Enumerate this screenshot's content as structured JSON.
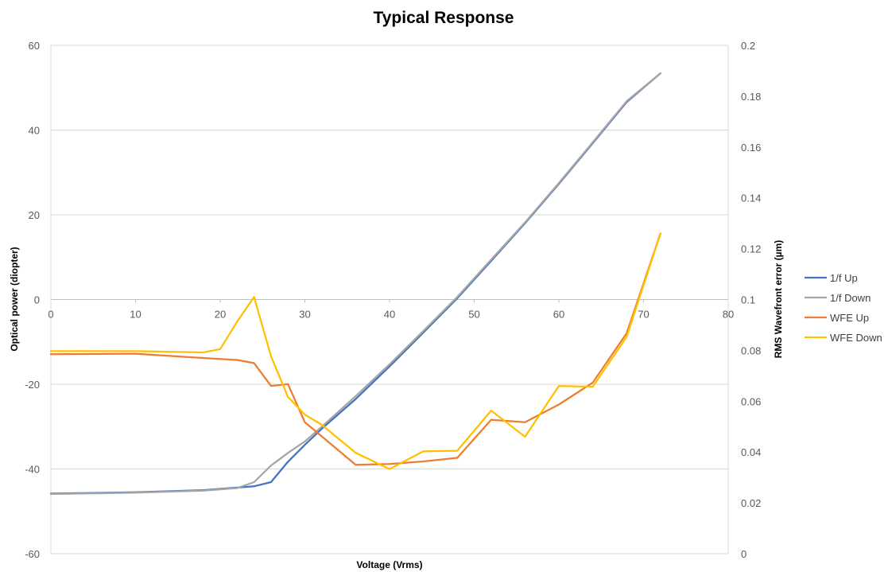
{
  "chart_data": {
    "type": "line",
    "title": "Typical Response",
    "xlabel": "Voltage (Vrms)",
    "ylabel": "Optical power (diopter)",
    "y2label": "RMS Wavefront error (µm)",
    "xlim": [
      0,
      80
    ],
    "ylim": [
      -60,
      60
    ],
    "y2lim": [
      0,
      0.2
    ],
    "x_ticks": [
      0,
      10,
      20,
      30,
      40,
      50,
      60,
      70,
      80
    ],
    "y_ticks": [
      -60,
      -40,
      -20,
      0,
      20,
      40,
      60
    ],
    "y2_ticks": [
      "0",
      "0.02",
      "0.04",
      "0.06",
      "0.08",
      "0.1",
      "0.12",
      "0.14",
      "0.16",
      "0.18",
      "0.2"
    ],
    "grid": "horizontal",
    "legend_position": "right",
    "series": [
      {
        "name": "1/f Up",
        "axis": "left",
        "color": "#4472C4",
        "x": [
          0,
          10,
          18,
          22,
          24,
          26,
          28,
          30,
          32,
          36,
          40,
          44,
          48,
          52,
          56,
          60,
          64,
          68,
          72
        ],
        "y": [
          -45.8,
          -45.5,
          -45,
          -44.4,
          -44.1,
          -43.1,
          -38.3,
          -34.3,
          -30.5,
          -23.5,
          -15.8,
          -7.8,
          0.3,
          9.1,
          18,
          27.3,
          36.9,
          46.6,
          53.4
        ]
      },
      {
        "name": "1/f Down",
        "axis": "left",
        "color": "#A5A5A5",
        "x": [
          0,
          10,
          18,
          22,
          24,
          26,
          28,
          30,
          32,
          36,
          40,
          44,
          48,
          52,
          56,
          60,
          64,
          68,
          72
        ],
        "y": [
          -45.9,
          -45.6,
          -45.1,
          -44.5,
          -43.1,
          -39.2,
          -36.2,
          -33.5,
          -30,
          -22.8,
          -15.3,
          -7.4,
          0.6,
          9.4,
          18.2,
          27.5,
          37.1,
          46.8,
          53.4
        ]
      },
      {
        "name": "WFE Up",
        "axis": "right",
        "color": "#ED7D31",
        "x": [
          0,
          10,
          18,
          22,
          24,
          26,
          28,
          30,
          36,
          40,
          44,
          48,
          52,
          56,
          60,
          64,
          68,
          72
        ],
        "y": [
          0.0785,
          0.0787,
          0.077,
          0.0762,
          0.075,
          0.066,
          0.0667,
          0.0517,
          0.035,
          0.0353,
          0.0363,
          0.0377,
          0.0527,
          0.0517,
          0.0587,
          0.0673,
          0.0867,
          0.126
        ]
      },
      {
        "name": "WFE Down",
        "axis": "right",
        "color": "#FFC000",
        "x": [
          0,
          10,
          18,
          20,
          22,
          24,
          26,
          28,
          30,
          32,
          36,
          40,
          44,
          48,
          52,
          56,
          60,
          64,
          68,
          72
        ],
        "y": [
          0.0797,
          0.0797,
          0.0792,
          0.0805,
          0.0913,
          0.101,
          0.0777,
          0.0617,
          0.0547,
          0.0507,
          0.0397,
          0.0333,
          0.0403,
          0.0405,
          0.0563,
          0.046,
          0.066,
          0.0657,
          0.0853,
          0.126
        ]
      }
    ]
  }
}
